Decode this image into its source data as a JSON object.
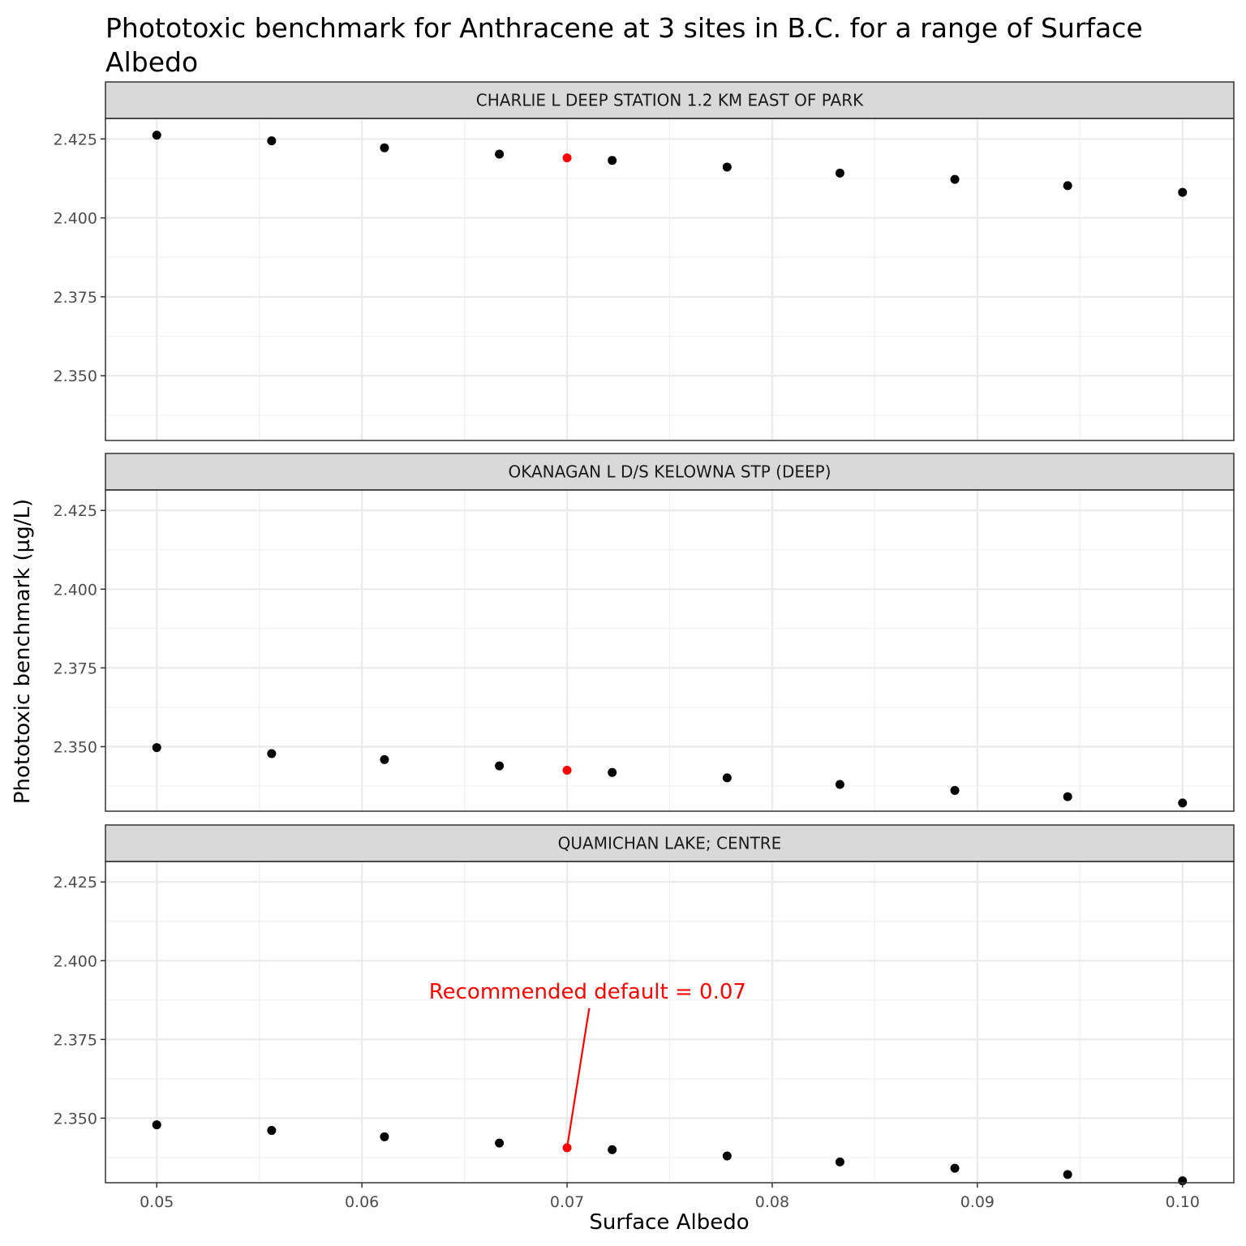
{
  "chart_data": {
    "type": "scatter",
    "title": "Phototoxic benchmark for Anthracene at 3 sites in B.C. for a range of Surface Albedo",
    "title_lines": [
      "Phototoxic benchmark for Anthracene at 3 sites in B.C. for a range of Surface",
      "Albedo"
    ],
    "xlabel": "Surface Albedo",
    "ylabel": "Phototoxic benchmark (µg/L)",
    "xlim": [
      0.0475,
      0.1025
    ],
    "ylim": [
      2.3295,
      2.4315
    ],
    "x_ticks": [
      0.05,
      0.06,
      0.07,
      0.08,
      0.09,
      0.1
    ],
    "x_tick_labels": [
      "0.05",
      "0.06",
      "0.07",
      "0.08",
      "0.09",
      "0.10"
    ],
    "y_ticks": [
      2.35,
      2.375,
      2.4,
      2.425
    ],
    "y_tick_labels": [
      "2.350",
      "2.375",
      "2.400",
      "2.425"
    ],
    "grid": true,
    "highlight_color": "#ff0000",
    "point_color": "#000000",
    "facets": [
      {
        "name": "CHARLIE L DEEP STATION 1.2 KM EAST OF PARK",
        "points": [
          {
            "x": 0.05,
            "y": 2.4262
          },
          {
            "x": 0.0556,
            "y": 2.4244
          },
          {
            "x": 0.0611,
            "y": 2.4222
          },
          {
            "x": 0.0667,
            "y": 2.4202
          },
          {
            "x": 0.0722,
            "y": 2.4182
          },
          {
            "x": 0.0778,
            "y": 2.4161
          },
          {
            "x": 0.0833,
            "y": 2.4142
          },
          {
            "x": 0.0889,
            "y": 2.4122
          },
          {
            "x": 0.0944,
            "y": 2.4102
          },
          {
            "x": 0.1,
            "y": 2.4081
          }
        ],
        "highlight": {
          "x": 0.07,
          "y": 2.419
        }
      },
      {
        "name": "OKANAGAN L D/S KELOWNA STP (DEEP)",
        "points": [
          {
            "x": 0.05,
            "y": 2.3497
          },
          {
            "x": 0.0556,
            "y": 2.3478
          },
          {
            "x": 0.0611,
            "y": 2.3459
          },
          {
            "x": 0.0667,
            "y": 2.3439
          },
          {
            "x": 0.0722,
            "y": 2.3418
          },
          {
            "x": 0.0778,
            "y": 2.3401
          },
          {
            "x": 0.0833,
            "y": 2.338
          },
          {
            "x": 0.0889,
            "y": 2.3361
          },
          {
            "x": 0.0944,
            "y": 2.3341
          },
          {
            "x": 0.1,
            "y": 2.3321
          }
        ],
        "highlight": {
          "x": 0.07,
          "y": 2.3425
        }
      },
      {
        "name": "QUAMICHAN LAKE; CENTRE",
        "points": [
          {
            "x": 0.05,
            "y": 2.3479
          },
          {
            "x": 0.0556,
            "y": 2.3461
          },
          {
            "x": 0.0611,
            "y": 2.3441
          },
          {
            "x": 0.0667,
            "y": 2.3421
          },
          {
            "x": 0.0722,
            "y": 2.34
          },
          {
            "x": 0.0778,
            "y": 2.338
          },
          {
            "x": 0.0833,
            "y": 2.3361
          },
          {
            "x": 0.0889,
            "y": 2.3341
          },
          {
            "x": 0.0944,
            "y": 2.3321
          },
          {
            "x": 0.1,
            "y": 2.3301
          }
        ],
        "highlight": {
          "x": 0.07,
          "y": 2.3406
        }
      }
    ],
    "annotation": {
      "text": "Recommended default = 0.07",
      "facet": 2,
      "label_x": 0.071,
      "label_y": 2.389,
      "arrow_to": {
        "x": 0.07,
        "y": 2.3406
      }
    }
  }
}
